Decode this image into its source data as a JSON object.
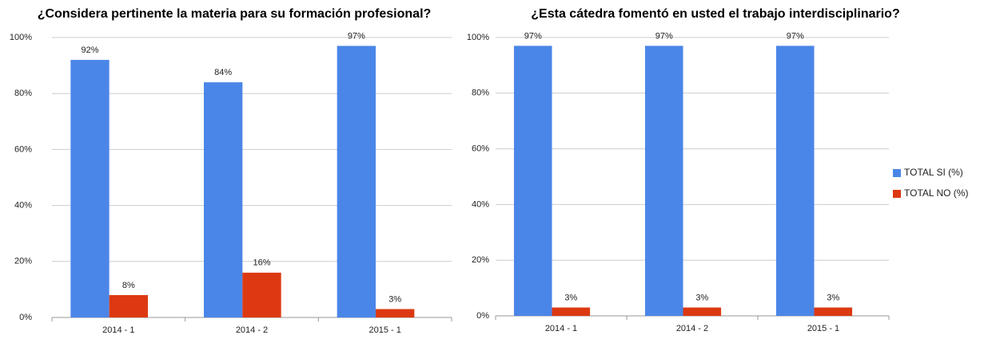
{
  "chart_data": [
    {
      "type": "bar",
      "title": "¿Considera pertinente la materia para su formación profesional?",
      "categories": [
        "2014 - 1",
        "2014 - 2",
        "2015 - 1"
      ],
      "series": [
        {
          "color": "#4a86e8",
          "values": [
            92,
            84,
            97
          ],
          "value_labels": [
            "92%",
            "84%",
            "97%"
          ]
        },
        {
          "color": "#dc3912",
          "values": [
            8,
            16,
            3
          ],
          "value_labels": [
            "8%",
            "16%",
            "3%"
          ]
        }
      ],
      "ylim": [
        0,
        100
      ],
      "yticks": [
        {
          "value": 0,
          "label": "0%"
        },
        {
          "value": 20,
          "label": "20%"
        },
        {
          "value": 40,
          "label": "40%"
        },
        {
          "value": 60,
          "label": "60%"
        },
        {
          "value": 80,
          "label": "80%"
        },
        {
          "value": 100,
          "label": "100%"
        }
      ],
      "grid": true
    },
    {
      "type": "bar",
      "title": "¿Esta cátedra fomentó en usted el trabajo interdisciplinario?",
      "categories": [
        "2014 - 1",
        "2014 - 2",
        "2015 - 1"
      ],
      "series": [
        {
          "name": "TOTAL SI (%)",
          "color": "#4a86e8",
          "values": [
            97,
            97,
            97
          ],
          "value_labels": [
            "97%",
            "97%",
            "97%"
          ]
        },
        {
          "name": "TOTAL NO (%)",
          "color": "#dc3912",
          "values": [
            3,
            3,
            3
          ],
          "value_labels": [
            "3%",
            "3%",
            "3%"
          ]
        }
      ],
      "ylim": [
        0,
        100
      ],
      "yticks": [
        {
          "value": 0,
          "label": "0%"
        },
        {
          "value": 20,
          "label": "20%"
        },
        {
          "value": 40,
          "label": "40%"
        },
        {
          "value": 60,
          "label": "60%"
        },
        {
          "value": 80,
          "label": "80%"
        },
        {
          "value": 100,
          "label": "100%"
        }
      ],
      "grid": true,
      "legend": "right"
    }
  ]
}
